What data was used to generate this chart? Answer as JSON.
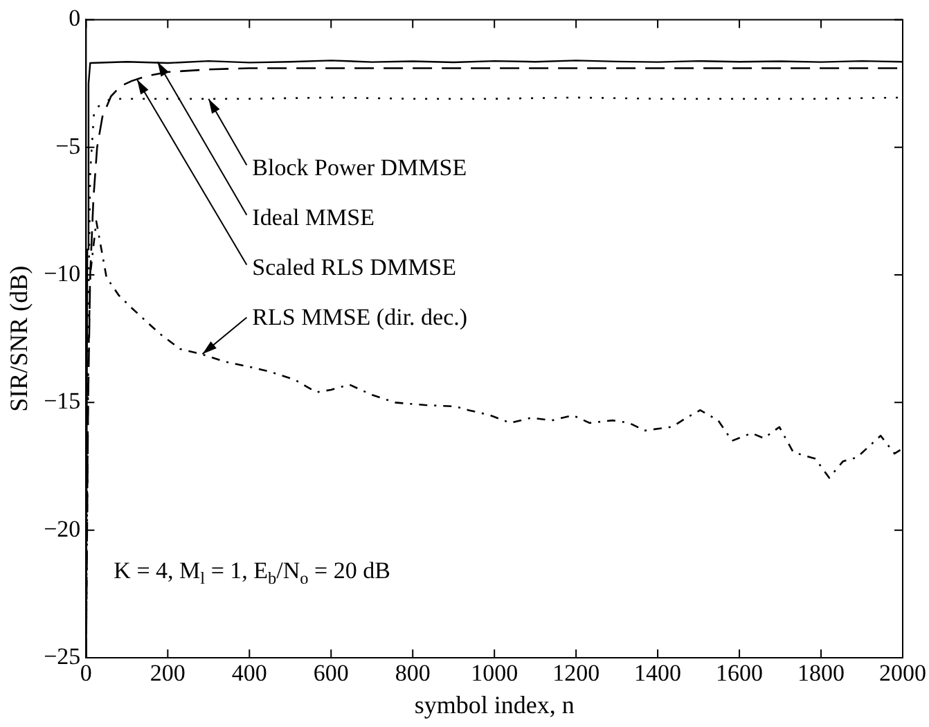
{
  "chart_data": {
    "type": "line",
    "xlabel": "symbol index, n",
    "ylabel": "SIR/SNR (dB)",
    "xlim": [
      0,
      2000
    ],
    "ylim": [
      -25,
      0
    ],
    "xticks": [
      0,
      200,
      400,
      600,
      800,
      1000,
      1200,
      1400,
      1600,
      1800,
      2000
    ],
    "yticks": [
      -25,
      -20,
      -15,
      -10,
      -5,
      0
    ],
    "grid": false,
    "legend": false,
    "marker": "none",
    "series": [
      {
        "color": "#000000",
        "line_style": "solid",
        "x": [
          0,
          3,
          6,
          10,
          100,
          200,
          300,
          400,
          500,
          600,
          700,
          800,
          900,
          1000,
          1100,
          1200,
          1300,
          1400,
          1500,
          1600,
          1700,
          1800,
          1900,
          2000
        ],
        "values": [
          -25,
          -9,
          -2.5,
          -1.7,
          -1.65,
          -1.7,
          -1.62,
          -1.68,
          -1.65,
          -1.6,
          -1.66,
          -1.63,
          -1.67,
          -1.62,
          -1.65,
          -1.6,
          -1.64,
          -1.66,
          -1.62,
          -1.65,
          -1.63,
          -1.66,
          -1.62,
          -1.65
        ]
      },
      {
        "color": "#000000",
        "line_style": "dotted",
        "x": [
          0,
          5,
          10,
          20,
          60,
          200,
          400,
          600,
          800,
          1000,
          1200,
          1400,
          1600,
          1800,
          2000
        ],
        "values": [
          -25,
          -12,
          -6,
          -3.5,
          -3.1,
          -3.1,
          -3.1,
          -3.05,
          -3.1,
          -3.1,
          -3.05,
          -3.1,
          -3.1,
          -3.1,
          -3.05
        ]
      },
      {
        "color": "#000000",
        "line_style": "dashed",
        "x": [
          0,
          5,
          10,
          18,
          27,
          40,
          61,
          85,
          112,
          150,
          200,
          300,
          400,
          600,
          800,
          1000,
          1200,
          1400,
          1600,
          1800,
          2000
        ],
        "values": [
          -25,
          -15,
          -10,
          -7,
          -5,
          -3.8,
          -3,
          -2.6,
          -2.4,
          -2.2,
          -2.05,
          -1.95,
          -1.9,
          -1.9,
          -1.9,
          -1.9,
          -1.9,
          -1.9,
          -1.9,
          -1.9,
          -1.9
        ]
      },
      {
        "color": "#000000",
        "line_style": "dashdot",
        "x": [
          0,
          5,
          10,
          25,
          50,
          80,
          112,
          180,
          230,
          282,
          340,
          400,
          452,
          510,
          564,
          600,
          645,
          700,
          757,
          830,
          903,
          937,
          990,
          1039,
          1090,
          1141,
          1192,
          1233,
          1290,
          1330,
          1368,
          1436,
          1470,
          1504,
          1548,
          1582,
          1630,
          1660,
          1698,
          1732,
          1786,
          1820,
          1854,
          1888,
          1946,
          1980,
          2000
        ],
        "values": [
          -25,
          -14,
          -10,
          -7.9,
          -10.1,
          -10.8,
          -11.3,
          -12.3,
          -12.9,
          -13.1,
          -13.4,
          -13.6,
          -13.8,
          -14.1,
          -14.6,
          -14.5,
          -14.3,
          -14.7,
          -15.0,
          -15.1,
          -15.15,
          -15.3,
          -15.5,
          -15.8,
          -15.6,
          -15.7,
          -15.5,
          -15.8,
          -15.7,
          -15.8,
          -16.1,
          -15.95,
          -15.6,
          -15.3,
          -15.7,
          -16.5,
          -16.2,
          -16.4,
          -15.96,
          -16.95,
          -17.2,
          -17.95,
          -17.3,
          -17.15,
          -16.3,
          -17.0,
          -16.8
        ]
      }
    ],
    "annotations": [
      {
        "text": "Block Power DMMSE",
        "x": 300,
        "y": -3.1
      },
      {
        "text": "Ideal MMSE",
        "x": 175,
        "y": -1.65
      },
      {
        "text": "Scaled RLS DMMSE",
        "x": 125,
        "y": -2.35
      },
      {
        "text": "RLS MMSE (dir. dec.)",
        "x": 285,
        "y": -13.1
      },
      "K = 4, M$_{l}$ = 1, E$_{b}$/N$_{o}$ = 20 dB"
    ]
  }
}
